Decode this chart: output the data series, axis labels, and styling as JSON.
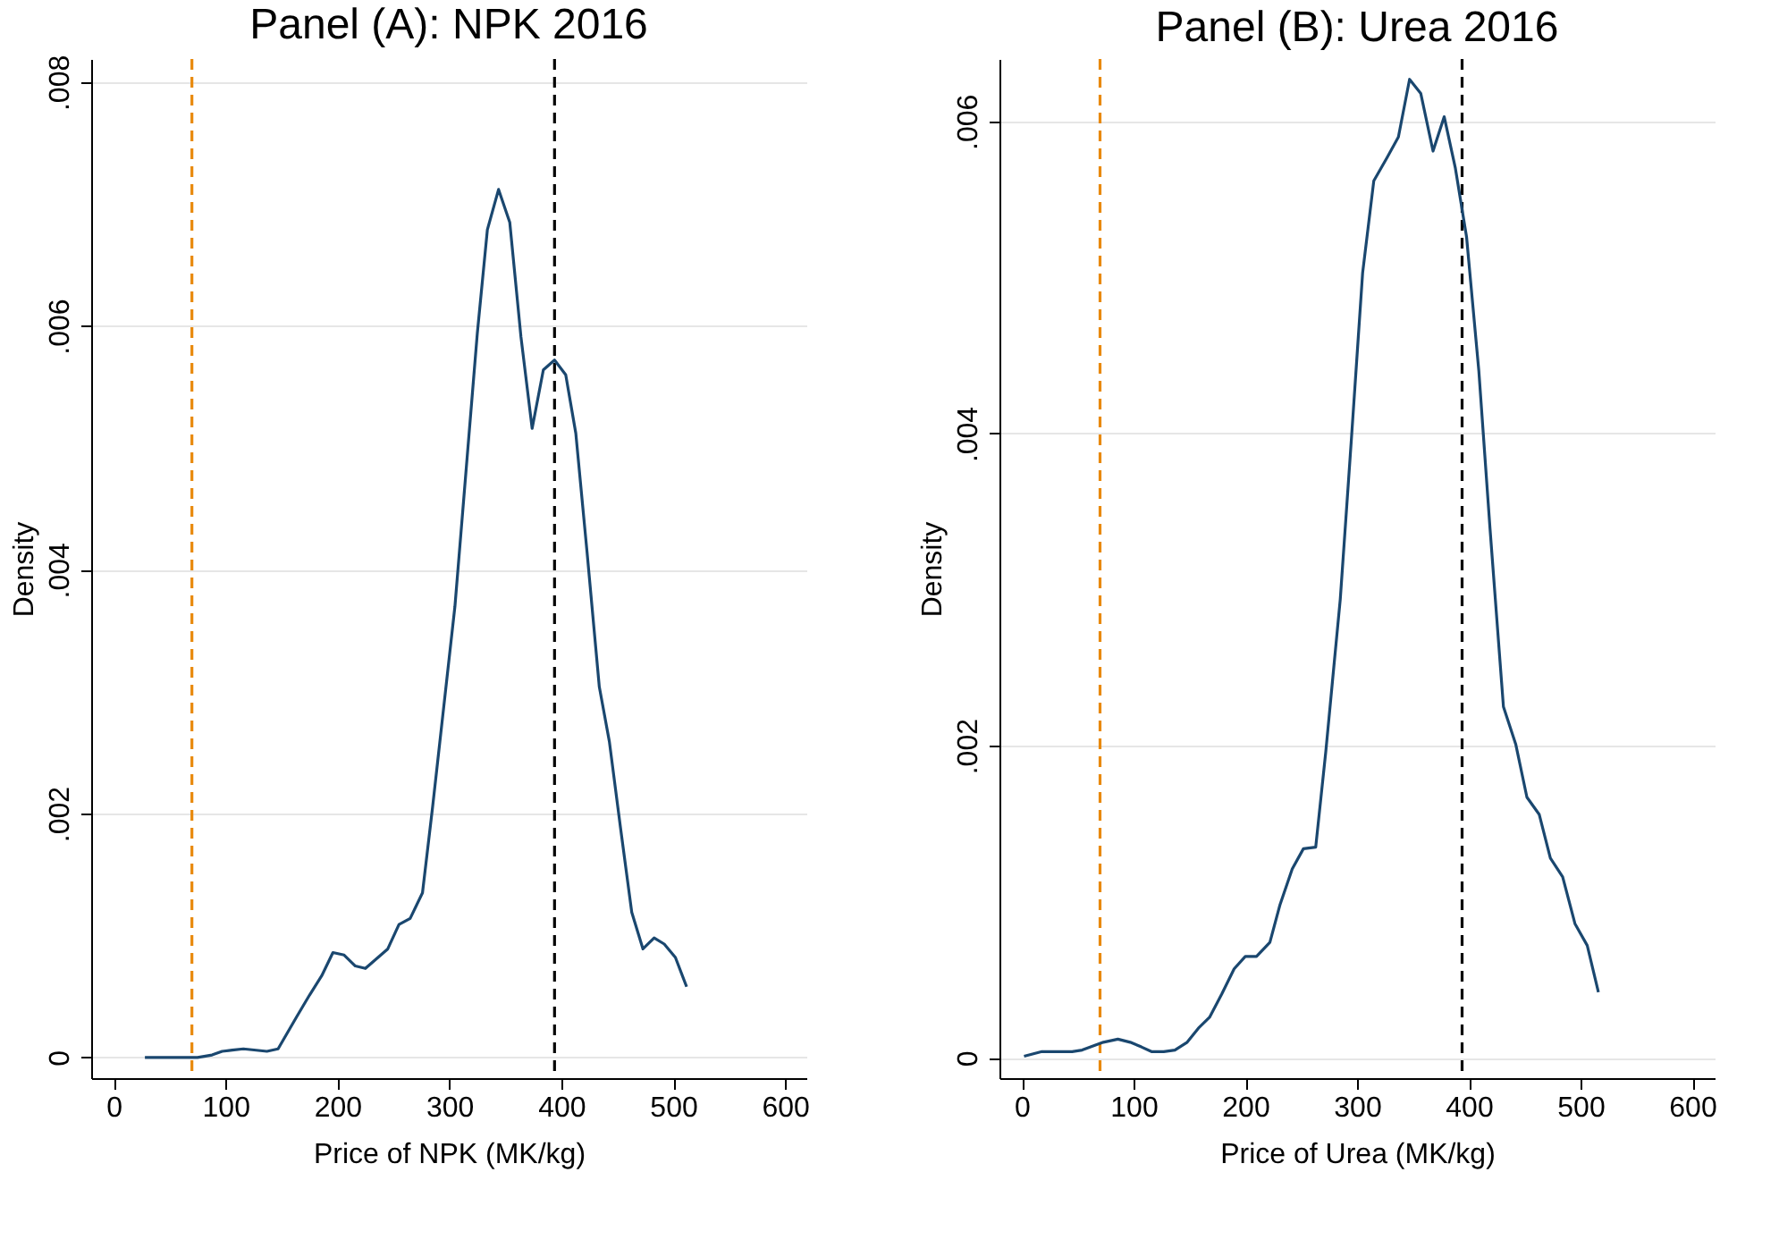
{
  "chart_data": [
    {
      "type": "line",
      "title": "Panel (A): NPK 2016",
      "xlabel": "Price of NPK (MK/kg)",
      "ylabel": "Density",
      "grid": "y",
      "marker": "none",
      "line_style": "solid",
      "xlim": [
        -20,
        619
      ],
      "ylim": [
        -0.00017,
        0.00819
      ],
      "xticks": [
        0,
        100,
        200,
        300,
        400,
        500,
        600
      ],
      "yticks": [
        0,
        {
          "value": 0.002,
          "label": ".002"
        },
        {
          "value": 0.004,
          "label": ".004"
        },
        {
          "value": 0.006,
          "label": ".006"
        },
        {
          "value": 0.008,
          "label": ".008"
        }
      ],
      "series": [
        {
          "color": "#1a476f",
          "x": [
            28,
            46,
            75,
            88,
            97,
            106,
            116,
            137,
            147,
            164,
            175,
            186,
            196,
            206,
            216,
            225,
            245,
            255,
            265,
            276,
            285,
            305,
            325,
            334,
            344,
            354,
            364,
            374,
            384,
            394,
            404,
            413,
            423,
            434,
            443,
            453,
            463,
            473,
            483,
            492,
            502,
            512
          ],
          "values": [
            0,
            0,
            0,
            2e-05,
            5e-05,
            6e-05,
            7e-05,
            5e-05,
            7e-05,
            0.00034,
            0.00051,
            0.00067,
            0.00086,
            0.00084,
            0.00075,
            0.00073,
            0.00089,
            0.00109,
            0.00114,
            0.00135,
            0.00205,
            0.0037,
            0.00594,
            0.00679,
            0.00712,
            0.00685,
            0.00591,
            0.00516,
            0.00564,
            0.00572,
            0.0056,
            0.00512,
            0.00415,
            0.00304,
            0.00259,
            0.00188,
            0.00119,
            0.00089,
            0.00098,
            0.00093,
            0.00082,
            0.00058
          ]
        }
      ],
      "ref_lines": [
        {
          "axis": "x",
          "value": 70,
          "color": "#e8890c",
          "line_style": "dashed"
        },
        {
          "axis": "x",
          "value": 394,
          "color": "#000000",
          "line_style": "dashed"
        }
      ]
    },
    {
      "type": "line",
      "title": "Panel (B): Urea 2016",
      "xlabel": "Price of Urea (MK/kg)",
      "ylabel": "Density",
      "grid": "y",
      "marker": "none",
      "line_style": "solid",
      "xlim": [
        -20,
        620
      ],
      "ylim": [
        -0.00013,
        0.0064
      ],
      "xticks": [
        0,
        100,
        200,
        300,
        400,
        500,
        600
      ],
      "yticks": [
        0,
        {
          "value": 0.002,
          "label": ".002"
        },
        {
          "value": 0.004,
          "label": ".004"
        },
        {
          "value": 0.006,
          "label": ".006"
        }
      ],
      "series": [
        {
          "color": "#1a476f",
          "x": [
            2,
            18,
            31,
            45,
            54,
            73,
            86,
            97,
            107,
            116,
            127,
            137,
            148,
            158,
            168,
            179,
            190,
            200,
            210,
            222,
            231,
            242,
            252,
            263,
            272,
            285,
            295,
            305,
            315,
            327,
            337,
            347,
            357,
            368,
            378,
            388,
            398,
            409,
            419,
            431,
            442,
            452,
            463,
            473,
            484,
            495,
            506,
            516
          ],
          "values": [
            1e-05,
            4e-05,
            4e-05,
            4e-05,
            5e-05,
            0.0001,
            0.00012,
            0.0001,
            7e-05,
            4e-05,
            4e-05,
            5e-05,
            0.0001,
            0.00019,
            0.00026,
            0.00041,
            0.00057,
            0.00065,
            0.00065,
            0.00074,
            0.00098,
            0.00121,
            0.00134,
            0.00135,
            0.00196,
            0.00294,
            0.00397,
            0.00503,
            0.00562,
            0.00577,
            0.0059,
            0.00627,
            0.00618,
            0.00581,
            0.00603,
            0.0057,
            0.00526,
            0.0044,
            0.00339,
            0.00225,
            0.00201,
            0.00167,
            0.00156,
            0.00128,
            0.00116,
            0.00086,
            0.00072,
            0.00042
          ]
        }
      ],
      "ref_lines": [
        {
          "axis": "x",
          "value": 70,
          "color": "#e8890c",
          "line_style": "dashed"
        },
        {
          "axis": "x",
          "value": 394,
          "color": "#000000",
          "line_style": "dashed"
        }
      ]
    }
  ]
}
